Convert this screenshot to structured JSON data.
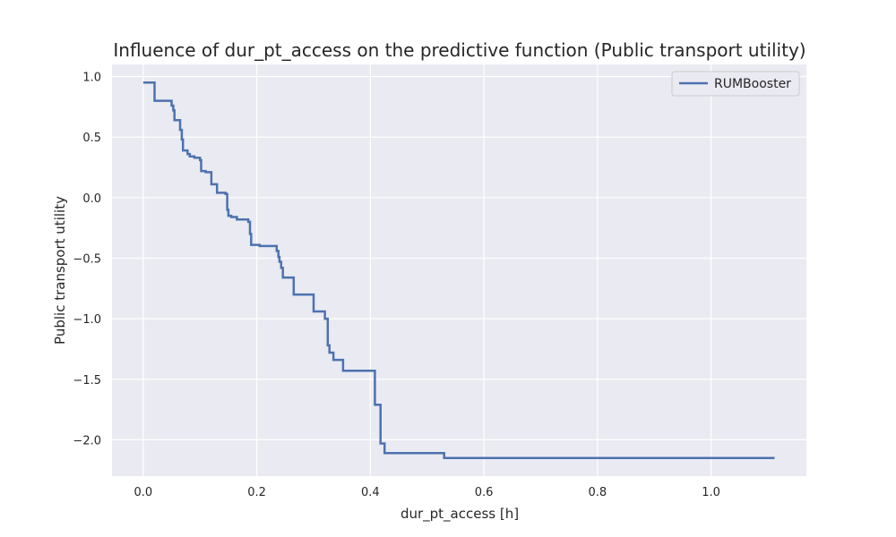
{
  "chart_data": {
    "type": "line",
    "title": "Influence of dur_pt_access on the predictive function (Public transport utility)",
    "xlabel": "dur_pt_access [h]",
    "ylabel": "Public transport utility",
    "xlim": [
      -0.055,
      1.168
    ],
    "ylim": [
      -2.3,
      1.1
    ],
    "xticks": [
      0.0,
      0.2,
      0.4,
      0.6,
      0.8,
      1.0
    ],
    "xtick_labels": [
      "0.0",
      "0.2",
      "0.4",
      "0.6",
      "0.8",
      "1.0"
    ],
    "yticks": [
      1.0,
      0.5,
      0.0,
      -0.5,
      -1.0,
      -1.5,
      -2.0
    ],
    "ytick_labels": [
      "1.0",
      "0.5",
      "0.0",
      "−0.5",
      "−1.0",
      "−1.5",
      "−2.0"
    ],
    "grid": true,
    "legend_position": "top-right",
    "style": "step-post",
    "colors": {
      "background": "#eaeaf2",
      "grid": "#ffffff",
      "line": "#4c72b0"
    },
    "series": [
      {
        "name": "RUMBooster",
        "x": [
          0.0,
          0.02,
          0.05,
          0.053,
          0.055,
          0.065,
          0.068,
          0.07,
          0.078,
          0.082,
          0.09,
          0.1,
          0.102,
          0.11,
          0.12,
          0.13,
          0.145,
          0.148,
          0.15,
          0.155,
          0.165,
          0.185,
          0.188,
          0.19,
          0.205,
          0.235,
          0.238,
          0.24,
          0.243,
          0.246,
          0.265,
          0.3,
          0.32,
          0.325,
          0.328,
          0.335,
          0.352,
          0.408,
          0.418,
          0.425,
          0.53,
          1.112
        ],
        "y": [
          0.95,
          0.8,
          0.76,
          0.72,
          0.64,
          0.56,
          0.48,
          0.39,
          0.36,
          0.34,
          0.33,
          0.31,
          0.22,
          0.21,
          0.11,
          0.04,
          0.03,
          -0.1,
          -0.15,
          -0.16,
          -0.18,
          -0.2,
          -0.3,
          -0.39,
          -0.4,
          -0.44,
          -0.49,
          -0.53,
          -0.58,
          -0.66,
          -0.8,
          -0.94,
          -1.0,
          -1.22,
          -1.28,
          -1.34,
          -1.43,
          -1.71,
          -2.03,
          -2.11,
          -2.15,
          -2.15
        ]
      }
    ]
  }
}
